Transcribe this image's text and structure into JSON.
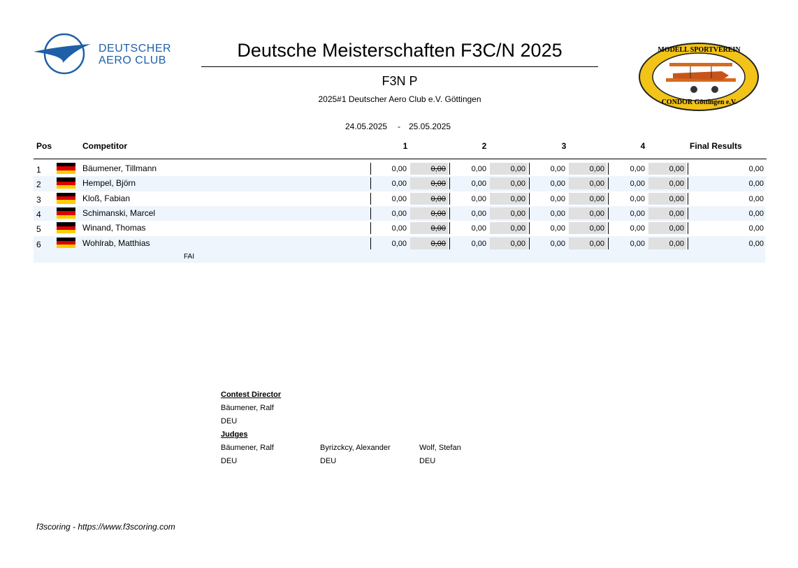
{
  "header": {
    "logo_left": [
      "DEUTSCHER",
      "AERO CLUB"
    ],
    "title": "Deutsche Meisterschaften F3C/N 2025",
    "class": "F3N P",
    "event": "2025#1 Deutscher Aero Club e.V. Göttingen",
    "date_from": "24.05.2025",
    "date_sep": "-",
    "date_to": "25.05.2025",
    "logo_right": [
      "MODELL SPORTVEREIN",
      "CONDOR Göttingen e.V."
    ]
  },
  "table": {
    "columns": [
      "Pos",
      "Competitor",
      "1",
      "2",
      "3",
      "4",
      "Final Results"
    ],
    "rows": [
      {
        "pos": 1,
        "name": "Bäumener, Tillmann",
        "rounds": [
          [
            "0,00",
            "0,00"
          ],
          [
            "0,00",
            "0,00"
          ],
          [
            "0,00",
            "0,00"
          ],
          [
            "0,00",
            "0,00"
          ]
        ],
        "final": "0,00"
      },
      {
        "pos": 2,
        "name": "Hempel, Björn",
        "rounds": [
          [
            "0,00",
            "0,00"
          ],
          [
            "0,00",
            "0,00"
          ],
          [
            "0,00",
            "0,00"
          ],
          [
            "0,00",
            "0,00"
          ]
        ],
        "final": "0,00"
      },
      {
        "pos": 3,
        "name": "Kloß, Fabian",
        "rounds": [
          [
            "0,00",
            "0,00"
          ],
          [
            "0,00",
            "0,00"
          ],
          [
            "0,00",
            "0,00"
          ],
          [
            "0,00",
            "0,00"
          ]
        ],
        "final": "0,00"
      },
      {
        "pos": 4,
        "name": "Schimanski, Marcel",
        "rounds": [
          [
            "0,00",
            "0,00"
          ],
          [
            "0,00",
            "0,00"
          ],
          [
            "0,00",
            "0,00"
          ],
          [
            "0,00",
            "0,00"
          ]
        ],
        "final": "0,00"
      },
      {
        "pos": 5,
        "name": "Winand, Thomas",
        "rounds": [
          [
            "0,00",
            "0,00"
          ],
          [
            "0,00",
            "0,00"
          ],
          [
            "0,00",
            "0,00"
          ],
          [
            "0,00",
            "0,00"
          ]
        ],
        "final": "0,00"
      },
      {
        "pos": 6,
        "name": "Wohlrab, Matthias",
        "rounds": [
          [
            "0,00",
            "0,00"
          ],
          [
            "0,00",
            "0,00"
          ],
          [
            "0,00",
            "0,00"
          ],
          [
            "0,00",
            "0,00"
          ]
        ],
        "final": "0,00"
      }
    ],
    "note": "FAI"
  },
  "officials": {
    "contest_director": {
      "heading": "Contest Director",
      "name": "Bäumener, Ralf",
      "country": "DEU"
    },
    "judges": {
      "heading": "Judges",
      "list": [
        {
          "name": "Bäumener, Ralf",
          "country": "DEU"
        },
        {
          "name": "Byrizckcy, Alexander",
          "country": "DEU"
        },
        {
          "name": "Wolf, Stefan",
          "country": "DEU"
        }
      ]
    }
  },
  "footer": "f3scoring - https://www.f3scoring.com"
}
